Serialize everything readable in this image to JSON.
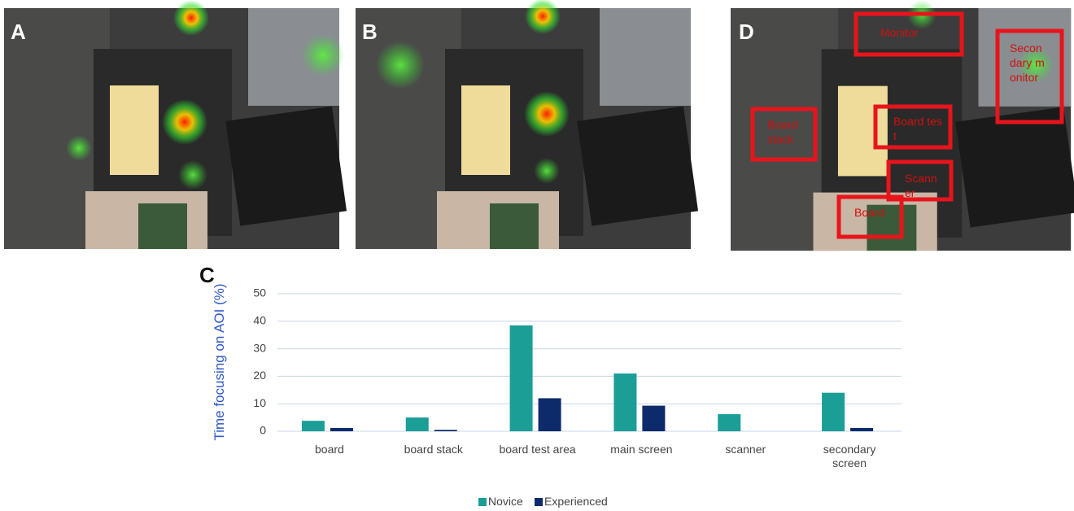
{
  "panels": {
    "a": "A",
    "b": "B",
    "c": "C",
    "d": "D"
  },
  "aoi_labels": [
    "Monitor",
    "Secondary monitor",
    "Board stack",
    "Board test",
    "Scanner",
    "Board"
  ],
  "chart_data": {
    "type": "bar",
    "y_label": "Time focusing on AOI (%)",
    "categories": [
      "board",
      "board stack",
      "board test area",
      "main screen",
      "scanner",
      "secondary screen"
    ],
    "series": [
      {
        "name": "Novice",
        "color": "#1a9e96",
        "values": [
          3.8,
          5,
          38.5,
          21,
          6.2,
          14
        ]
      },
      {
        "name": "Experienced",
        "color": "#0d2a6b",
        "values": [
          1.2,
          0.5,
          12,
          9.3,
          0,
          1.2
        ]
      }
    ],
    "ylim": [
      0,
      50
    ],
    "yticks": [
      0,
      10,
      20,
      30,
      40,
      50
    ],
    "grid": true,
    "legend": "bottom"
  }
}
